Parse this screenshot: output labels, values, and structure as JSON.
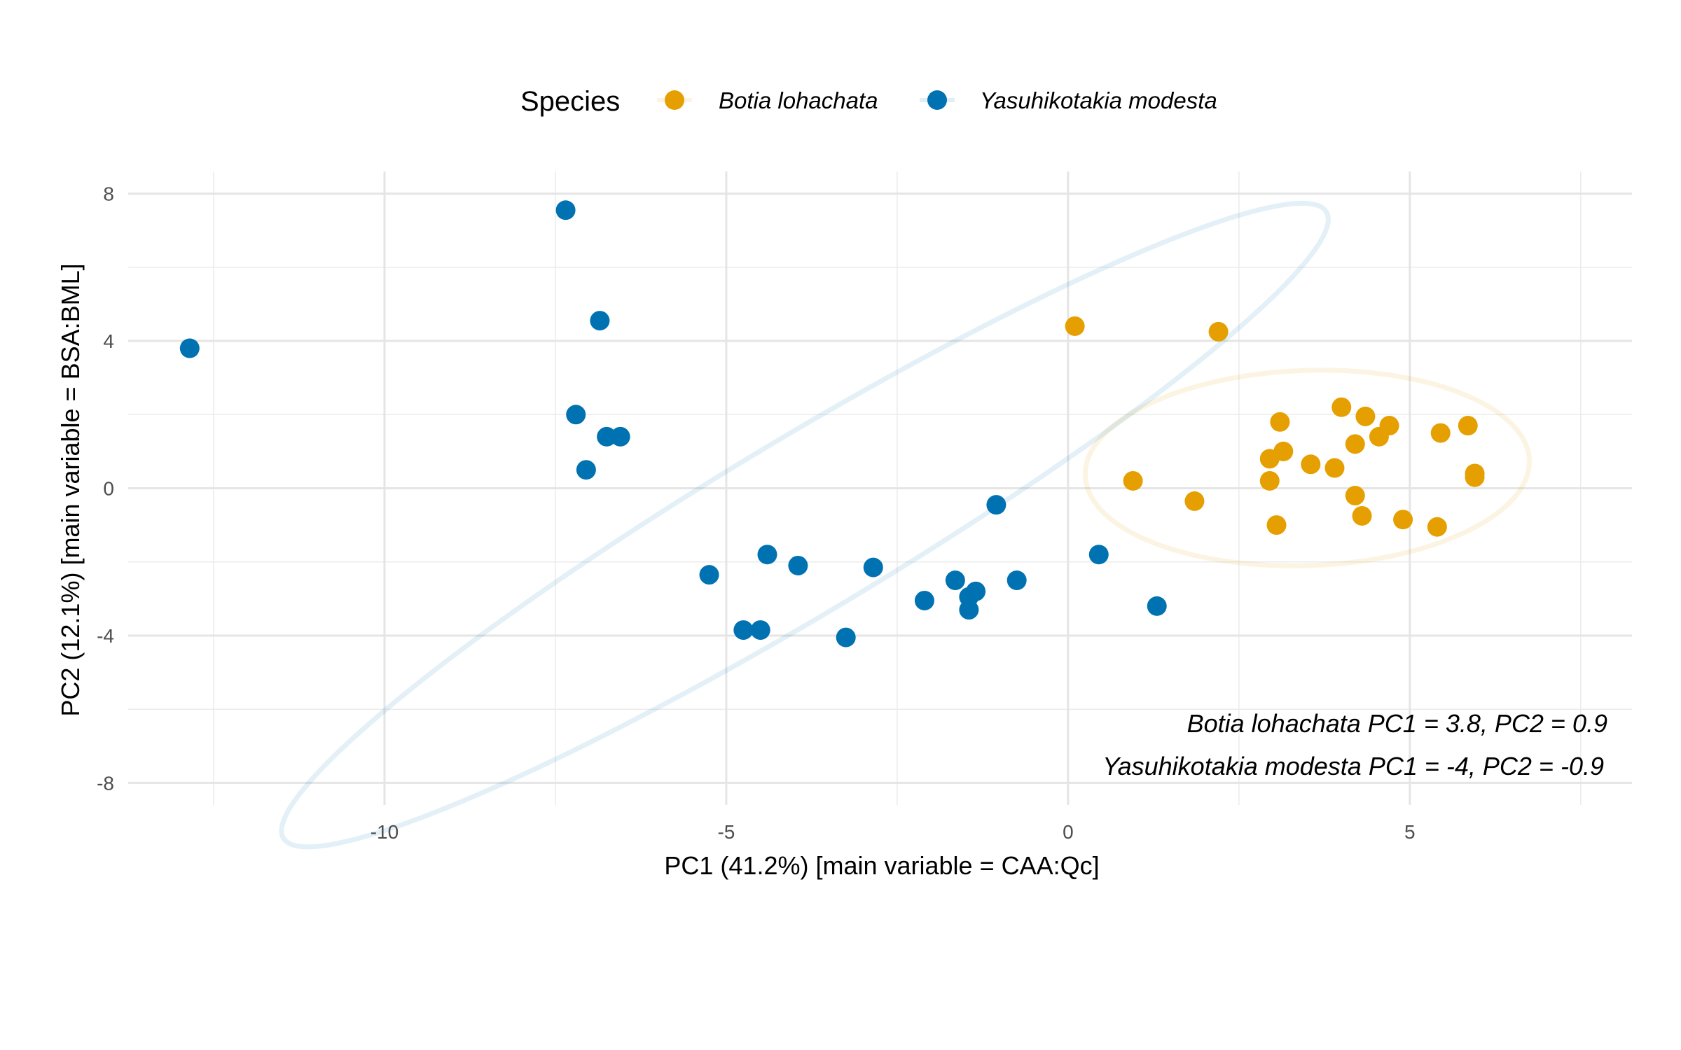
{
  "chart_data": {
    "type": "scatter",
    "xlabel": "PC1 (41.2%) [main variable = CAA:Qc]",
    "ylabel": "PC2 (12.1%) [main variable = BSA:BML]",
    "xlim": [
      -13.75,
      8.25
    ],
    "ylim": [
      -8.6,
      8.6
    ],
    "x_ticks": [
      -10,
      -5,
      0,
      5
    ],
    "x_tick_labels": [
      "-10",
      "-5",
      "0",
      "5"
    ],
    "y_ticks": [
      -8,
      -4,
      0,
      4,
      8
    ],
    "y_tick_labels": [
      "-8",
      "-4",
      "0",
      "4",
      "8"
    ],
    "grid": true,
    "legend": {
      "title": "Species",
      "placement": "top"
    },
    "series": [
      {
        "name": "Botia lohachata",
        "color": "#E69F00",
        "points": [
          {
            "x": 0.1,
            "y": 4.4
          },
          {
            "x": 2.2,
            "y": 4.25
          },
          {
            "x": 4.0,
            "y": 2.2
          },
          {
            "x": 4.35,
            "y": 1.95
          },
          {
            "x": 3.1,
            "y": 1.8
          },
          {
            "x": 4.7,
            "y": 1.7
          },
          {
            "x": 5.85,
            "y": 1.7
          },
          {
            "x": 5.45,
            "y": 1.5
          },
          {
            "x": 4.55,
            "y": 1.4
          },
          {
            "x": 4.2,
            "y": 1.2
          },
          {
            "x": 3.15,
            "y": 1.0
          },
          {
            "x": 2.95,
            "y": 0.8
          },
          {
            "x": 3.55,
            "y": 0.65
          },
          {
            "x": 3.9,
            "y": 0.55
          },
          {
            "x": 5.95,
            "y": 0.4
          },
          {
            "x": 5.95,
            "y": 0.3
          },
          {
            "x": 0.95,
            "y": 0.2
          },
          {
            "x": 2.95,
            "y": 0.2
          },
          {
            "x": 4.2,
            "y": -0.2
          },
          {
            "x": 1.85,
            "y": -0.35
          },
          {
            "x": 4.3,
            "y": -0.75
          },
          {
            "x": 4.9,
            "y": -0.85
          },
          {
            "x": 3.05,
            "y": -1.0
          },
          {
            "x": 5.4,
            "y": -1.05
          }
        ]
      },
      {
        "name": "Yasuhikotakia modesta",
        "color": "#0072B2",
        "points": [
          {
            "x": -7.35,
            "y": 7.55
          },
          {
            "x": -12.85,
            "y": 3.8
          },
          {
            "x": -6.85,
            "y": 4.55
          },
          {
            "x": -7.2,
            "y": 2.0
          },
          {
            "x": -6.75,
            "y": 1.4
          },
          {
            "x": -6.55,
            "y": 1.4
          },
          {
            "x": -7.05,
            "y": 0.5
          },
          {
            "x": -1.05,
            "y": -0.45
          },
          {
            "x": -4.4,
            "y": -1.8
          },
          {
            "x": 0.45,
            "y": -1.8
          },
          {
            "x": -3.95,
            "y": -2.1
          },
          {
            "x": -2.85,
            "y": -2.15
          },
          {
            "x": -5.25,
            "y": -2.35
          },
          {
            "x": -1.65,
            "y": -2.5
          },
          {
            "x": -0.75,
            "y": -2.5
          },
          {
            "x": -1.35,
            "y": -2.8
          },
          {
            "x": -1.45,
            "y": -2.95
          },
          {
            "x": -2.1,
            "y": -3.05
          },
          {
            "x": 1.3,
            "y": -3.2
          },
          {
            "x": -1.45,
            "y": -3.3
          },
          {
            "x": -4.75,
            "y": -3.85
          },
          {
            "x": -4.5,
            "y": -3.85
          },
          {
            "x": -3.25,
            "y": -4.05
          }
        ]
      }
    ],
    "ellipses": [
      {
        "series": "Botia lohachata",
        "color": "#E69F00",
        "cx": 3.5,
        "cy": 0.55,
        "rx": 3.25,
        "ry": 2.65,
        "angle_deg": -2
      },
      {
        "series": "Yasuhikotakia modesta",
        "color": "#0072B2",
        "cx": -3.85,
        "cy": -1.0,
        "rx": 8.9,
        "ry": 2.35,
        "angle_deg": -31
      }
    ],
    "annotations": [
      "Botia lohachata PC1 = 3.8, PC2 = 0.9",
      "Yasuhikotakia modesta PC1 = -4, PC2 = -0.9"
    ]
  }
}
